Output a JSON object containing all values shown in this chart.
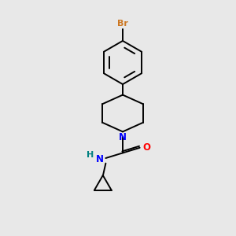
{
  "bg_color": "#e8e8e8",
  "bond_color": "#000000",
  "br_color": "#cc7722",
  "n_color": "#0000ff",
  "o_color": "#ff0000",
  "nh_color": "#008080",
  "h_color": "#008080",
  "label_br": "Br",
  "label_n": "N",
  "label_o": "O",
  "label_nh": "N",
  "label_h": "H"
}
